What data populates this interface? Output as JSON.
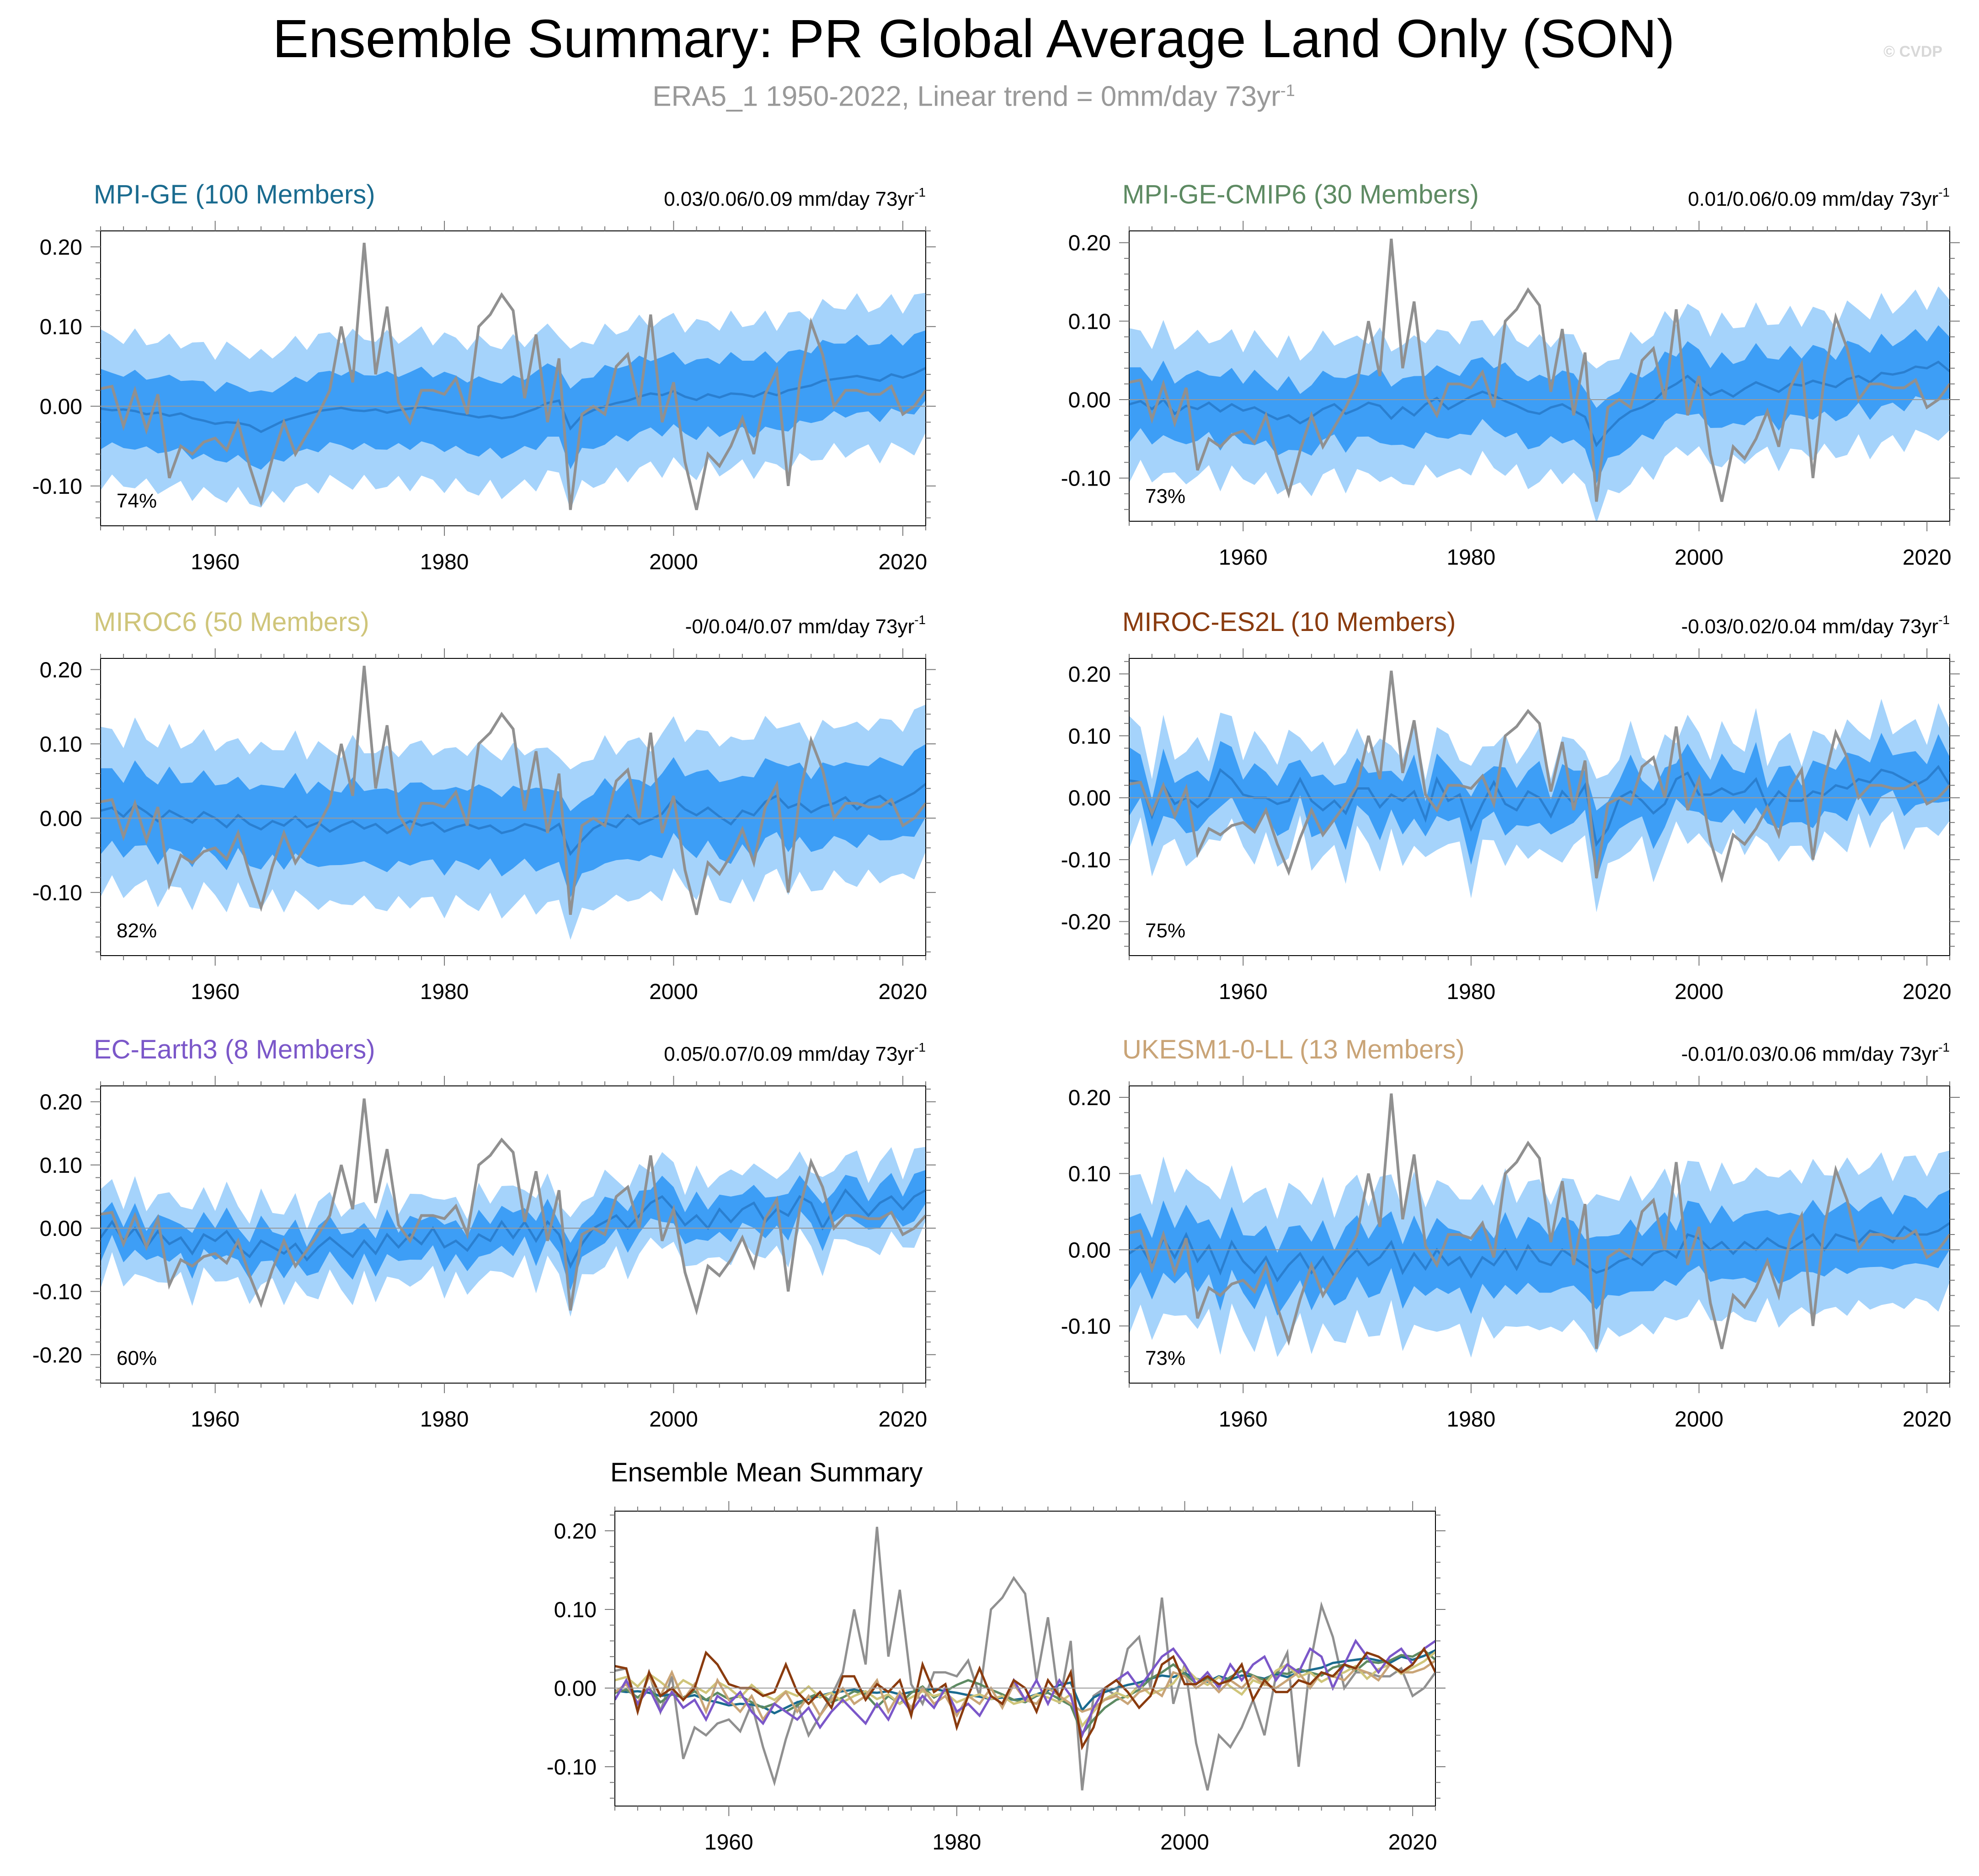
{
  "header": {
    "title": "Ensemble Summary: PR Global Average Land Only (SON)",
    "subtitle": "ERA5_1 1950-2022, Linear trend = 0mm/day 73yr",
    "subtitle_sup": "-1",
    "watermark": "© CVDP"
  },
  "colors": {
    "outer_band": "#a5d3fb",
    "inner_band": "#3d9ef6",
    "ensemble_mean": "#2a7fd0",
    "observations": "#909090"
  },
  "chart_data": [
    {
      "type": "area",
      "title": "MPI-GE (100 Members)",
      "title_color": "#1a6b8f",
      "trend_label": "0.03/0.06/0.09 mm/day 73yr",
      "trend_sup": "-1",
      "percent_label": "74%",
      "xlim": [
        1950,
        2022
      ],
      "ylim": [
        -0.15,
        0.22
      ],
      "yticks": [
        -0.1,
        0.0,
        0.1,
        0.2
      ],
      "ytick_labels": [
        "-0.10",
        "0.00",
        "0.10",
        "0.20"
      ],
      "xticks": [
        1960,
        1980,
        2000,
        2020
      ],
      "xtick_labels": [
        "1960",
        "1980",
        "2000",
        "2020"
      ],
      "mean": [
        -0.003,
        -0.005,
        -0.004,
        -0.006,
        -0.01,
        -0.008,
        -0.012,
        -0.009,
        -0.015,
        -0.018,
        -0.022,
        -0.02,
        -0.021,
        -0.024,
        -0.032,
        -0.025,
        -0.018,
        -0.014,
        -0.01,
        -0.006,
        -0.004,
        -0.002,
        -0.005,
        -0.006,
        -0.004,
        -0.008,
        -0.005,
        -0.003,
        -0.001,
        -0.004,
        -0.006,
        -0.009,
        -0.011,
        -0.014,
        -0.012,
        -0.015,
        -0.013,
        -0.008,
        -0.003,
        0.004,
        0.007,
        -0.028,
        -0.012,
        -0.005,
        0.0,
        0.004,
        0.007,
        0.012,
        0.016,
        0.014,
        0.019,
        0.012,
        0.008,
        0.015,
        0.011,
        0.016,
        0.015,
        0.012,
        0.018,
        0.014,
        0.02,
        0.023,
        0.026,
        0.032,
        0.034,
        0.036,
        0.038,
        0.035,
        0.032,
        0.04,
        0.036,
        0.041,
        0.048
      ],
      "inner_half": 0.046,
      "outer_half": 0.092,
      "outer_extra": 0.012,
      "inner_extra": 0.006,
      "obs": [
        0.022,
        0.025,
        -0.025,
        0.02,
        -0.03,
        0.015,
        -0.09,
        -0.05,
        -0.06,
        -0.045,
        -0.04,
        -0.055,
        -0.02,
        -0.075,
        -0.12,
        -0.065,
        -0.02,
        -0.06,
        -0.035,
        -0.01,
        0.02,
        0.1,
        0.03,
        0.205,
        0.04,
        0.125,
        0.005,
        -0.02,
        0.02,
        0.02,
        0.015,
        0.035,
        -0.01,
        0.1,
        0.115,
        0.14,
        0.12,
        0.01,
        0.09,
        -0.02,
        0.06,
        -0.13,
        -0.01,
        0.0,
        -0.01,
        0.05,
        0.065,
        0.0,
        0.115,
        -0.02,
        0.03,
        -0.07,
        -0.13,
        -0.06,
        -0.075,
        -0.05,
        -0.015,
        -0.06,
        0.015,
        0.045,
        -0.1,
        0.03,
        0.105,
        0.065,
        0.0,
        0.02,
        0.02,
        0.015,
        0.015,
        0.025,
        -0.01,
        0.0,
        0.02
      ]
    },
    {
      "type": "area",
      "title": "MPI-GE-CMIP6 (30 Members)",
      "title_color": "#5d8a62",
      "trend_label": "0.01/0.06/0.09 mm/day 73yr",
      "trend_sup": "-1",
      "percent_label": "73%",
      "xlim": [
        1950,
        2022
      ],
      "ylim": [
        -0.155,
        0.215
      ],
      "yticks": [
        -0.1,
        0.0,
        0.1,
        0.2
      ],
      "ytick_labels": [
        "-0.10",
        "0.00",
        "0.10",
        "0.20"
      ],
      "xticks": [
        1960,
        1980,
        2000,
        2020
      ],
      "xtick_labels": [
        "1960",
        "1980",
        "2000",
        "2020"
      ],
      "mean": [
        -0.006,
        -0.002,
        -0.012,
        0.0,
        -0.018,
        -0.008,
        -0.012,
        -0.004,
        -0.015,
        -0.006,
        -0.014,
        -0.01,
        -0.018,
        -0.025,
        -0.02,
        -0.03,
        -0.022,
        -0.012,
        -0.006,
        -0.018,
        -0.012,
        -0.004,
        -0.008,
        -0.024,
        -0.01,
        -0.02,
        -0.006,
        0.002,
        -0.012,
        -0.004,
        0.004,
        0.01,
        0.005,
        -0.002,
        -0.008,
        -0.015,
        -0.018,
        -0.01,
        -0.006,
        -0.014,
        -0.022,
        -0.058,
        -0.04,
        -0.025,
        -0.015,
        -0.01,
        -0.002,
        0.012,
        0.02,
        0.03,
        0.018,
        0.006,
        0.012,
        0.004,
        0.014,
        0.022,
        0.016,
        0.01,
        0.02,
        0.018,
        0.024,
        0.02,
        0.016,
        0.026,
        0.03,
        0.022,
        0.034,
        0.032,
        0.035,
        0.042,
        0.04,
        0.048,
        0.036
      ],
      "inner_half": 0.042,
      "outer_half": 0.088,
      "outer_extra": 0.014,
      "inner_extra": 0.008,
      "obs": [
        0.022,
        0.025,
        -0.025,
        0.02,
        -0.03,
        0.015,
        -0.09,
        -0.05,
        -0.06,
        -0.045,
        -0.04,
        -0.055,
        -0.02,
        -0.075,
        -0.12,
        -0.065,
        -0.02,
        -0.06,
        -0.035,
        -0.01,
        0.02,
        0.1,
        0.03,
        0.205,
        0.04,
        0.125,
        0.005,
        -0.02,
        0.02,
        0.02,
        0.015,
        0.035,
        -0.01,
        0.1,
        0.115,
        0.14,
        0.12,
        0.01,
        0.09,
        -0.02,
        0.06,
        -0.13,
        -0.01,
        0.0,
        -0.01,
        0.05,
        0.065,
        0.0,
        0.115,
        -0.02,
        0.03,
        -0.07,
        -0.13,
        -0.06,
        -0.075,
        -0.05,
        -0.015,
        -0.06,
        0.015,
        0.045,
        -0.1,
        0.03,
        0.105,
        0.065,
        0.0,
        0.02,
        0.02,
        0.015,
        0.015,
        0.025,
        -0.01,
        0.0,
        0.02
      ]
    },
    {
      "type": "area",
      "title": "MIROC6 (50 Members)",
      "title_color": "#cfc57a",
      "trend_label": "-0/0.04/0.07 mm/day 73yr",
      "trend_sup": "-1",
      "percent_label": "82%",
      "xlim": [
        1950,
        2022
      ],
      "ylim": [
        -0.185,
        0.215
      ],
      "yticks": [
        -0.1,
        0.0,
        0.1,
        0.2
      ],
      "ytick_labels": [
        "-0.10",
        "0.00",
        "0.10",
        "0.20"
      ],
      "xticks": [
        1960,
        1980,
        2000,
        2020
      ],
      "xtick_labels": [
        "1960",
        "1980",
        "2000",
        "2020"
      ],
      "mean": [
        0.01,
        0.014,
        0.002,
        0.018,
        0.008,
        -0.004,
        0.01,
        0.002,
        -0.006,
        0.008,
        0.0,
        -0.012,
        0.004,
        -0.008,
        -0.015,
        -0.004,
        -0.01,
        0.002,
        -0.012,
        -0.006,
        -0.018,
        -0.01,
        -0.004,
        -0.014,
        -0.008,
        -0.02,
        -0.012,
        -0.004,
        -0.01,
        -0.006,
        -0.018,
        -0.012,
        -0.008,
        -0.014,
        -0.01,
        -0.02,
        -0.016,
        -0.008,
        -0.012,
        -0.018,
        -0.008,
        -0.048,
        -0.03,
        -0.014,
        -0.006,
        -0.012,
        0.004,
        -0.008,
        -0.002,
        0.006,
        0.026,
        0.012,
        0.004,
        0.014,
        0.002,
        -0.008,
        0.01,
        0.004,
        0.022,
        0.03,
        0.014,
        0.02,
        0.008,
        0.016,
        0.02,
        0.028,
        0.012,
        0.024,
        0.03,
        0.018,
        0.026,
        0.034,
        0.046
      ],
      "inner_half": 0.052,
      "outer_half": 0.104,
      "outer_extra": 0.014,
      "inner_extra": 0.008,
      "obs": [
        0.022,
        0.025,
        -0.025,
        0.02,
        -0.03,
        0.015,
        -0.09,
        -0.05,
        -0.06,
        -0.045,
        -0.04,
        -0.055,
        -0.02,
        -0.075,
        -0.12,
        -0.065,
        -0.02,
        -0.06,
        -0.035,
        -0.01,
        0.02,
        0.1,
        0.03,
        0.205,
        0.04,
        0.125,
        0.005,
        -0.02,
        0.02,
        0.02,
        0.015,
        0.035,
        -0.01,
        0.1,
        0.115,
        0.14,
        0.12,
        0.01,
        0.09,
        -0.02,
        0.06,
        -0.13,
        -0.01,
        0.0,
        -0.01,
        0.05,
        0.065,
        0.0,
        0.115,
        -0.02,
        0.03,
        -0.07,
        -0.13,
        -0.06,
        -0.075,
        -0.05,
        -0.015,
        -0.06,
        0.015,
        0.045,
        -0.1,
        0.03,
        0.105,
        0.065,
        0.0,
        0.02,
        0.02,
        0.015,
        0.015,
        0.025,
        -0.01,
        0.0,
        0.02
      ]
    },
    {
      "type": "area",
      "title": "MIROC-ES2L (10 Members)",
      "title_color": "#8a3b0e",
      "trend_label": "-0.03/0.02/0.04 mm/day 73yr",
      "trend_sup": "-1",
      "percent_label": "75%",
      "xlim": [
        1950,
        2022
      ],
      "ylim": [
        -0.255,
        0.225
      ],
      "yticks": [
        -0.2,
        -0.1,
        0.0,
        0.1,
        0.2
      ],
      "ytick_labels": [
        "-0.20",
        "-0.10",
        "0.00",
        "0.10",
        "0.20"
      ],
      "xticks": [
        1960,
        1980,
        2000,
        2020
      ],
      "xtick_labels": [
        "1960",
        "1980",
        "2000",
        "2020"
      ],
      "mean": [
        0.028,
        0.025,
        -0.03,
        0.02,
        -0.01,
        0.0,
        -0.015,
        0.0,
        0.045,
        0.03,
        0.005,
        0.0,
        0.0,
        -0.01,
        -0.005,
        0.03,
        -0.005,
        -0.02,
        -0.005,
        -0.025,
        0.015,
        0.015,
        -0.015,
        0.005,
        -0.005,
        0.01,
        -0.035,
        0.03,
        -0.005,
        0.005,
        -0.05,
        -0.01,
        0.025,
        -0.01,
        -0.02,
        0.01,
        0.0,
        -0.03,
        0.01,
        -0.01,
        0.02,
        -0.075,
        -0.05,
        0.0,
        0.01,
        -0.005,
        -0.025,
        -0.01,
        0.03,
        0.04,
        0.005,
        0.005,
        0.015,
        0.005,
        0.01,
        0.03,
        -0.015,
        0.01,
        -0.005,
        -0.005,
        0.01,
        0.005,
        0.02,
        0.015,
        0.03,
        0.025,
        0.045,
        0.04,
        0.03,
        0.02,
        0.03,
        0.05,
        0.02
      ],
      "inner_half": 0.042,
      "outer_half": 0.085,
      "outer_extra": 0.03,
      "inner_extra": 0.018,
      "obs": [
        0.022,
        0.025,
        -0.025,
        0.02,
        -0.03,
        0.015,
        -0.09,
        -0.05,
        -0.06,
        -0.045,
        -0.04,
        -0.055,
        -0.02,
        -0.075,
        -0.12,
        -0.065,
        -0.02,
        -0.06,
        -0.035,
        -0.01,
        0.02,
        0.1,
        0.03,
        0.205,
        0.04,
        0.125,
        0.005,
        -0.02,
        0.02,
        0.02,
        0.015,
        0.035,
        -0.01,
        0.1,
        0.115,
        0.14,
        0.12,
        0.01,
        0.09,
        -0.02,
        0.06,
        -0.13,
        -0.01,
        0.0,
        -0.01,
        0.05,
        0.065,
        0.0,
        0.115,
        -0.02,
        0.03,
        -0.07,
        -0.13,
        -0.06,
        -0.075,
        -0.05,
        -0.015,
        -0.06,
        0.015,
        0.045,
        -0.1,
        0.03,
        0.105,
        0.065,
        0.0,
        0.02,
        0.02,
        0.015,
        0.015,
        0.025,
        -0.01,
        0.0,
        0.02
      ]
    },
    {
      "type": "area",
      "title": "EC-Earth3 (8 Members)",
      "title_color": "#7b57c9",
      "trend_label": "0.05/0.07/0.09 mm/day 73yr",
      "trend_sup": "-1",
      "percent_label": "60%",
      "xlim": [
        1950,
        2022
      ],
      "ylim": [
        -0.245,
        0.225
      ],
      "yticks": [
        -0.2,
        -0.1,
        0.0,
        0.1,
        0.2
      ],
      "ytick_labels": [
        "-0.20",
        "-0.10",
        "0.00",
        "0.10",
        "0.20"
      ],
      "xticks": [
        1960,
        1980,
        2000,
        2020
      ],
      "xtick_labels": [
        "1960",
        "1980",
        "2000",
        "2020"
      ],
      "mean": [
        -0.015,
        0.01,
        -0.02,
        0.0,
        -0.03,
        -0.005,
        -0.025,
        -0.015,
        -0.04,
        -0.01,
        -0.02,
        -0.005,
        -0.03,
        -0.045,
        -0.02,
        -0.03,
        -0.04,
        -0.025,
        -0.05,
        -0.03,
        -0.015,
        -0.03,
        -0.045,
        -0.02,
        -0.04,
        -0.01,
        -0.03,
        -0.01,
        -0.025,
        0.0,
        -0.03,
        -0.02,
        -0.035,
        -0.01,
        -0.02,
        0.01,
        -0.015,
        0.01,
        -0.02,
        0.01,
        -0.01,
        -0.06,
        -0.025,
        0.0,
        0.01,
        0.02,
        0.0,
        0.02,
        0.04,
        0.05,
        0.03,
        0.005,
        0.02,
        0.0,
        0.03,
        0.01,
        0.03,
        0.04,
        0.01,
        0.03,
        0.02,
        0.05,
        0.04,
        0.0,
        0.03,
        0.06,
        0.04,
        0.02,
        0.04,
        0.05,
        0.03,
        0.05,
        0.06
      ],
      "inner_half": 0.03,
      "outer_half": 0.065,
      "outer_extra": 0.018,
      "inner_extra": 0.01,
      "obs": [
        0.022,
        0.025,
        -0.025,
        0.02,
        -0.03,
        0.015,
        -0.09,
        -0.05,
        -0.06,
        -0.045,
        -0.04,
        -0.055,
        -0.02,
        -0.075,
        -0.12,
        -0.065,
        -0.02,
        -0.06,
        -0.035,
        -0.01,
        0.02,
        0.1,
        0.03,
        0.205,
        0.04,
        0.125,
        0.005,
        -0.02,
        0.02,
        0.02,
        0.015,
        0.035,
        -0.01,
        0.1,
        0.115,
        0.14,
        0.12,
        0.01,
        0.09,
        -0.02,
        0.06,
        -0.13,
        -0.01,
        0.0,
        -0.01,
        0.05,
        0.065,
        0.0,
        0.115,
        -0.02,
        0.03,
        -0.07,
        -0.13,
        -0.06,
        -0.075,
        -0.05,
        -0.015,
        -0.06,
        0.015,
        0.045,
        -0.1,
        0.03,
        0.105,
        0.065,
        0.0,
        0.02,
        0.02,
        0.015,
        0.015,
        0.025,
        -0.01,
        0.0,
        0.02
      ]
    },
    {
      "type": "area",
      "title": "UKESM1-0-LL (13 Members)",
      "title_color": "#c9a477",
      "trend_label": "-0.01/0.03/0.06 mm/day 73yr",
      "trend_sup": "-1",
      "percent_label": "73%",
      "xlim": [
        1950,
        2022
      ],
      "ylim": [
        -0.175,
        0.215
      ],
      "yticks": [
        -0.1,
        0.0,
        0.1,
        0.2
      ],
      "ytick_labels": [
        "-0.10",
        "0.00",
        "0.10",
        "0.20"
      ],
      "xticks": [
        1960,
        1980,
        2000,
        2020
      ],
      "xtick_labels": [
        "1960",
        "1980",
        "2000",
        "2020"
      ],
      "mean": [
        -0.005,
        0.005,
        -0.02,
        0.015,
        -0.01,
        0.02,
        -0.015,
        0.005,
        -0.03,
        0.01,
        -0.015,
        -0.03,
        -0.01,
        -0.04,
        -0.02,
        -0.005,
        -0.03,
        -0.01,
        -0.035,
        -0.015,
        0.0,
        -0.02,
        -0.01,
        0.01,
        -0.03,
        -0.005,
        -0.025,
        0.0,
        -0.02,
        -0.01,
        -0.035,
        -0.01,
        -0.02,
        0.0,
        -0.025,
        0.005,
        -0.015,
        -0.02,
        0.0,
        -0.01,
        -0.02,
        -0.03,
        -0.025,
        -0.015,
        -0.01,
        -0.02,
        -0.005,
        0.0,
        -0.01,
        0.02,
        0.015,
        0.0,
        0.01,
        -0.005,
        0.01,
        0.0,
        0.015,
        0.005,
        0.0,
        0.01,
        0.02,
        0.0,
        0.02,
        0.015,
        0.01,
        0.025,
        0.02,
        0.01,
        0.03,
        0.02,
        0.02,
        0.025,
        0.035
      ],
      "inner_half": 0.042,
      "outer_half": 0.092,
      "outer_extra": 0.016,
      "inner_extra": 0.008,
      "obs": [
        0.022,
        0.025,
        -0.025,
        0.02,
        -0.03,
        0.015,
        -0.09,
        -0.05,
        -0.06,
        -0.045,
        -0.04,
        -0.055,
        -0.02,
        -0.075,
        -0.12,
        -0.065,
        -0.02,
        -0.06,
        -0.035,
        -0.01,
        0.02,
        0.1,
        0.03,
        0.205,
        0.04,
        0.125,
        0.005,
        -0.02,
        0.02,
        0.02,
        0.015,
        0.035,
        -0.01,
        0.1,
        0.115,
        0.14,
        0.12,
        0.01,
        0.09,
        -0.02,
        0.06,
        -0.13,
        -0.01,
        0.0,
        -0.01,
        0.05,
        0.065,
        0.0,
        0.115,
        -0.02,
        0.03,
        -0.07,
        -0.13,
        -0.06,
        -0.075,
        -0.05,
        -0.015,
        -0.06,
        0.015,
        0.045,
        -0.1,
        0.03,
        0.105,
        0.065,
        0.0,
        0.02,
        0.02,
        0.015,
        0.015,
        0.025,
        -0.01,
        0.0,
        0.02
      ]
    },
    {
      "type": "line",
      "title": "Ensemble Mean Summary",
      "title_color": "#000000",
      "xlim": [
        1950,
        2022
      ],
      "ylim": [
        -0.15,
        0.225
      ],
      "yticks": [
        -0.1,
        0.0,
        0.1,
        0.2
      ],
      "ytick_labels": [
        "-0.10",
        "0.00",
        "0.10",
        "0.20"
      ],
      "xticks": [
        1960,
        1980,
        2000,
        2020
      ],
      "xtick_labels": [
        "1960",
        "1980",
        "2000",
        "2020"
      ],
      "series": [
        {
          "color": "#909090",
          "source": 0,
          "field": "obs"
        },
        {
          "color": "#1a6b8f",
          "source": 0,
          "field": "mean"
        },
        {
          "color": "#5d8a62",
          "source": 1,
          "field": "mean"
        },
        {
          "color": "#cfc57a",
          "source": 2,
          "field": "mean"
        },
        {
          "color": "#c9a477",
          "source": 5,
          "field": "mean"
        },
        {
          "color": "#7b57c9",
          "source": 4,
          "field": "mean"
        },
        {
          "color": "#8a3b0e",
          "source": 3,
          "field": "mean"
        }
      ]
    }
  ]
}
